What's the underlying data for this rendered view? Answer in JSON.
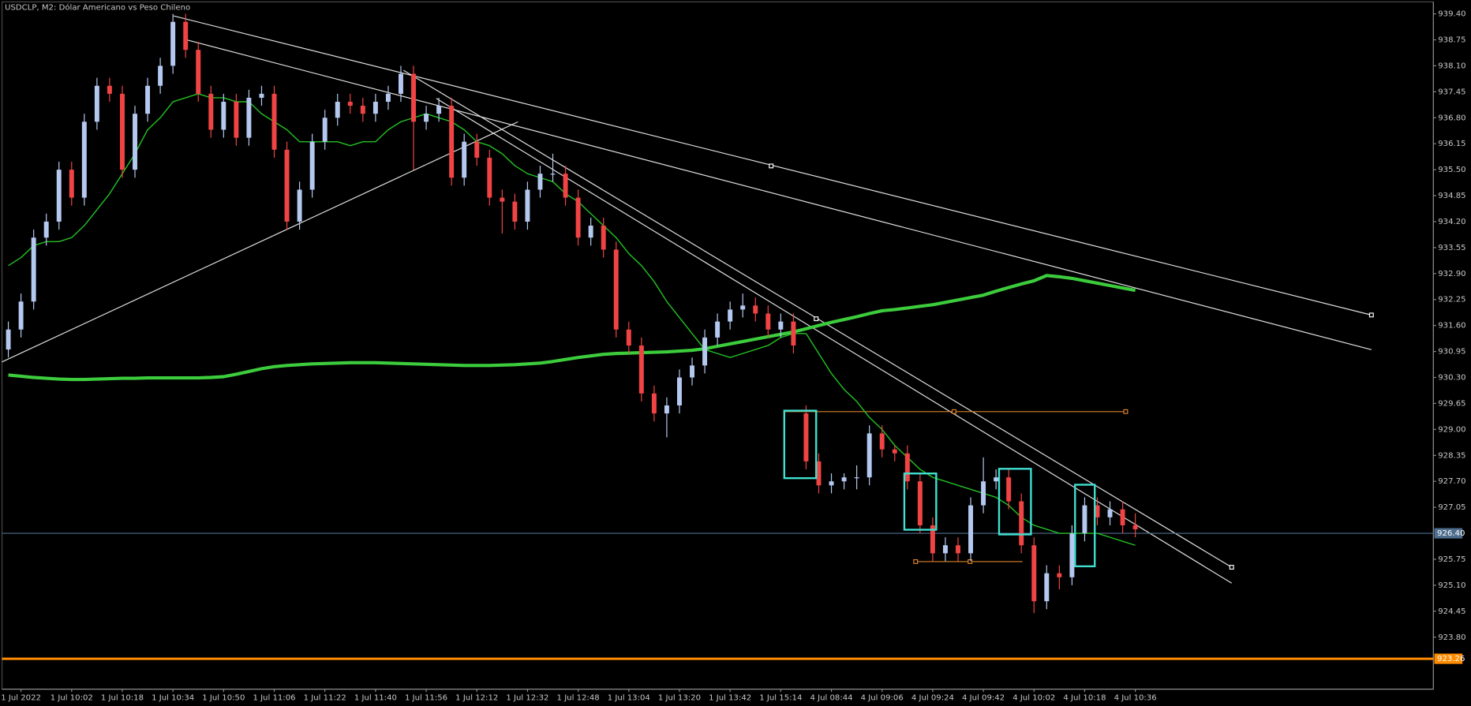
{
  "chart_data": {
    "type": "candlestick",
    "title": "USDCLP, M2: Dólar Americano vs Peso Chileno",
    "categories": [
      null,
      "1 Jul 2022",
      null,
      null,
      null,
      "1 Jul 10:02",
      null,
      null,
      null,
      "1 Jul 10:18",
      null,
      null,
      null,
      "1 Jul 10:34",
      null,
      null,
      null,
      "1 Jul 10:50",
      null,
      null,
      null,
      "1 Jul 11:06",
      null,
      null,
      null,
      "1 Jul 11:22",
      null,
      null,
      null,
      "1 Jul 11:40",
      null,
      null,
      null,
      "1 Jul 11:56",
      null,
      null,
      null,
      "1 Jul 12:12",
      null,
      null,
      null,
      "1 Jul 12:32",
      null,
      null,
      null,
      "1 Jul 12:48",
      null,
      null,
      null,
      "1 Jul 13:04",
      null,
      null,
      null,
      "1 Jul 13:20",
      null,
      null,
      null,
      "1 Jul 13:42",
      null,
      null,
      null,
      "1 Jul 15:14",
      null,
      null,
      null,
      "4 Jul 08:44",
      null,
      null,
      null,
      "4 Jul 09:06",
      null,
      null,
      null,
      "4 Jul 09:24",
      null,
      null,
      null,
      "4 Jul 09:42",
      null,
      null,
      null,
      "4 Jul 10:02",
      null,
      null,
      null,
      "4 Jul 10:18",
      null,
      null,
      null,
      "4 Jul 10:36"
    ],
    "open": [
      931.0,
      931.5,
      932.2,
      933.8,
      934.2,
      935.5,
      934.8,
      936.7,
      937.6,
      937.4,
      935.5,
      936.9,
      937.6,
      938.1,
      939.2,
      938.5,
      937.4,
      936.5,
      937.2,
      936.3,
      937.3,
      937.4,
      936.0,
      934.2,
      935.0,
      936.2,
      936.8,
      937.2,
      937.1,
      936.9,
      937.2,
      937.4,
      937.9,
      936.7,
      936.9,
      937.1,
      935.3,
      936.2,
      935.8,
      934.8,
      934.7,
      934.2,
      935.0,
      935.4,
      935.4,
      934.8,
      933.8,
      934.1,
      933.5,
      931.5,
      931.1,
      929.9,
      929.4,
      929.6,
      930.3,
      930.6,
      931.3,
      931.7,
      932.0,
      932.1,
      931.9,
      931.5,
      931.7,
      929.4,
      928.2,
      927.6,
      927.7,
      927.8,
      927.8,
      928.9,
      928.5,
      928.4,
      927.7,
      926.6,
      925.9,
      926.1,
      925.9,
      927.1,
      927.7,
      927.8,
      927.2,
      926.1,
      924.7,
      925.4,
      925.3,
      926.4,
      927.1,
      926.8,
      927.0,
      926.6
    ],
    "high": [
      931.7,
      932.4,
      934.0,
      934.4,
      935.7,
      935.7,
      936.9,
      937.8,
      937.8,
      937.6,
      937.1,
      937.8,
      938.3,
      939.4,
      939.4,
      938.7,
      937.6,
      937.4,
      937.4,
      937.5,
      937.6,
      937.6,
      936.2,
      935.2,
      936.4,
      937.0,
      937.4,
      937.4,
      937.3,
      937.4,
      937.6,
      938.1,
      938.1,
      937.1,
      937.3,
      937.3,
      936.4,
      936.4,
      936.0,
      935.0,
      934.9,
      935.2,
      935.6,
      935.9,
      935.6,
      935.0,
      934.3,
      934.3,
      933.7,
      931.7,
      931.3,
      930.1,
      929.8,
      930.5,
      930.8,
      931.5,
      931.9,
      932.2,
      932.4,
      932.3,
      932.1,
      931.9,
      931.9,
      929.6,
      928.4,
      927.9,
      927.9,
      928.1,
      929.1,
      929.1,
      928.6,
      928.6,
      927.9,
      926.8,
      926.3,
      926.3,
      927.3,
      928.3,
      928.0,
      928.0,
      927.4,
      926.3,
      925.6,
      925.6,
      926.6,
      927.3,
      927.3,
      927.2,
      927.2,
      926.9
    ],
    "low": [
      930.8,
      931.3,
      932.0,
      933.6,
      934.0,
      934.6,
      934.6,
      936.5,
      937.2,
      935.3,
      935.3,
      936.7,
      937.4,
      937.9,
      938.3,
      937.2,
      936.3,
      936.3,
      936.1,
      936.1,
      937.1,
      935.8,
      934.0,
      934.0,
      934.8,
      936.0,
      936.6,
      936.9,
      936.7,
      936.7,
      937.0,
      937.2,
      935.5,
      936.5,
      936.7,
      935.1,
      935.1,
      935.6,
      934.6,
      933.9,
      934.0,
      934.0,
      934.8,
      935.2,
      934.6,
      933.6,
      933.6,
      933.3,
      931.3,
      930.9,
      929.7,
      929.2,
      928.8,
      929.4,
      930.1,
      930.4,
      931.1,
      931.5,
      931.8,
      931.7,
      931.3,
      931.3,
      930.9,
      928.0,
      927.4,
      927.4,
      927.5,
      927.5,
      927.6,
      928.3,
      928.2,
      927.5,
      926.4,
      925.7,
      925.7,
      925.7,
      925.7,
      926.9,
      927.5,
      927.0,
      925.9,
      924.4,
      924.5,
      925.0,
      925.1,
      926.2,
      926.6,
      926.6,
      926.4,
      926.3
    ],
    "close": [
      931.5,
      932.2,
      933.8,
      934.2,
      935.5,
      934.8,
      936.7,
      937.6,
      937.4,
      935.5,
      936.9,
      937.6,
      938.1,
      939.2,
      938.5,
      937.4,
      936.5,
      937.2,
      936.3,
      937.3,
      937.4,
      936.0,
      934.2,
      935.0,
      936.2,
      936.8,
      937.2,
      937.1,
      936.9,
      937.2,
      937.4,
      937.9,
      936.7,
      936.9,
      937.1,
      935.3,
      936.2,
      935.8,
      934.8,
      934.7,
      934.2,
      935.0,
      935.4,
      935.4,
      934.8,
      933.8,
      934.1,
      933.5,
      931.5,
      931.1,
      929.9,
      929.4,
      929.6,
      930.3,
      930.6,
      931.3,
      931.7,
      932.0,
      932.1,
      931.9,
      931.5,
      931.7,
      931.1,
      928.2,
      927.6,
      927.7,
      927.8,
      927.8,
      928.9,
      928.5,
      928.4,
      927.7,
      926.6,
      925.9,
      926.1,
      925.9,
      927.1,
      927.7,
      927.8,
      927.2,
      926.1,
      924.7,
      925.4,
      925.3,
      926.4,
      927.1,
      926.8,
      927.0,
      926.6,
      926.5
    ],
    "up_color": "#b4c8f0",
    "down_color": "#f04444",
    "moving_averages": [
      {
        "color": "#22c022",
        "values": [
          933.1,
          933.3,
          933.6,
          933.7,
          933.7,
          933.8,
          934.1,
          934.5,
          934.9,
          935.4,
          935.9,
          936.5,
          936.8,
          937.2,
          937.3,
          937.4,
          937.3,
          937.3,
          937.2,
          937.2,
          936.9,
          936.7,
          936.5,
          936.2,
          936.2,
          936.2,
          936.2,
          936.1,
          936.2,
          936.2,
          936.5,
          936.7,
          936.8,
          936.9,
          936.8,
          936.7,
          936.5,
          936.2,
          936.1,
          935.9,
          935.6,
          935.4,
          935.3,
          935.2,
          934.9,
          934.7,
          934.4,
          934.1,
          933.8,
          933.4,
          933.1,
          932.7,
          932.2,
          931.8,
          931.4,
          931.0,
          930.9,
          930.8,
          930.9,
          931.0,
          931.1,
          931.3,
          931.4,
          931.4,
          930.9,
          930.4,
          930.0,
          929.7,
          929.3,
          929.0,
          928.6,
          928.3,
          928.0,
          927.8,
          927.7,
          927.6,
          927.5,
          927.4,
          927.3,
          927.1,
          926.8,
          926.6,
          926.5,
          926.4,
          926.4,
          926.4,
          926.4,
          926.3,
          926.2,
          926.1
        ]
      },
      {
        "color": "#3ccc3c",
        "values": [
          930.36,
          930.33,
          930.3,
          930.28,
          930.26,
          930.25,
          930.25,
          930.26,
          930.27,
          930.28,
          930.28,
          930.29,
          930.29,
          930.29,
          930.29,
          930.29,
          930.3,
          930.32,
          930.38,
          930.45,
          930.52,
          930.57,
          930.6,
          930.62,
          930.64,
          930.65,
          930.66,
          930.67,
          930.67,
          930.67,
          930.66,
          930.65,
          930.64,
          930.63,
          930.62,
          930.61,
          930.6,
          930.6,
          930.6,
          930.61,
          930.62,
          930.64,
          930.66,
          930.7,
          930.75,
          930.8,
          930.84,
          930.88,
          930.9,
          930.91,
          930.92,
          930.93,
          930.94,
          930.96,
          930.98,
          931.02,
          931.08,
          931.14,
          931.2,
          931.26,
          931.32,
          931.38,
          931.44,
          931.52,
          931.6,
          931.68,
          931.75,
          931.82,
          931.9,
          931.97,
          932.0,
          932.04,
          932.08,
          932.12,
          932.18,
          932.24,
          932.3,
          932.36,
          932.46,
          932.55,
          932.64,
          932.72,
          932.85,
          932.82,
          932.78,
          932.72,
          932.66,
          932.6,
          932.54,
          932.48
        ]
      }
    ],
    "price_lines": [
      {
        "value": 926.4,
        "label": "926.40",
        "color": "#4e6e8e"
      },
      {
        "value": 923.26,
        "label": "923.26",
        "color": "#ff8c00"
      }
    ],
    "ylim": [
      922.5,
      939.7
    ],
    "yticks": [
      {
        "value": 939.4,
        "label": "939.40"
      },
      {
        "value": 938.75,
        "label": "938.75"
      },
      {
        "value": 938.1,
        "label": "938.10"
      },
      {
        "value": 937.45,
        "label": "937.45"
      },
      {
        "value": 936.8,
        "label": "936.80"
      },
      {
        "value": 936.15,
        "label": "936.15"
      },
      {
        "value": 935.5,
        "label": "935.50"
      },
      {
        "value": 934.85,
        "label": "934.85"
      },
      {
        "value": 934.2,
        "label": "934.20"
      },
      {
        "value": 933.55,
        "label": "933.55"
      },
      {
        "value": 932.9,
        "label": "932.90"
      },
      {
        "value": 932.25,
        "label": "932.25"
      },
      {
        "value": 931.6,
        "label": "931.60"
      },
      {
        "value": 930.95,
        "label": "930.95"
      },
      {
        "value": 930.3,
        "label": "930.30"
      },
      {
        "value": 929.65,
        "label": "929.65"
      },
      {
        "value": 929.0,
        "label": "929.00"
      },
      {
        "value": 928.35,
        "label": "928.35"
      },
      {
        "value": 927.7,
        "label": "927.70"
      },
      {
        "value": 927.05,
        "label": "927.05"
      },
      {
        "value": 925.75,
        "label": "925.75"
      },
      {
        "value": 925.1,
        "label": "925.10"
      },
      {
        "value": 924.45,
        "label": "924.45"
      },
      {
        "value": 923.8,
        "label": "923.80"
      }
    ],
    "grid": false
  }
}
